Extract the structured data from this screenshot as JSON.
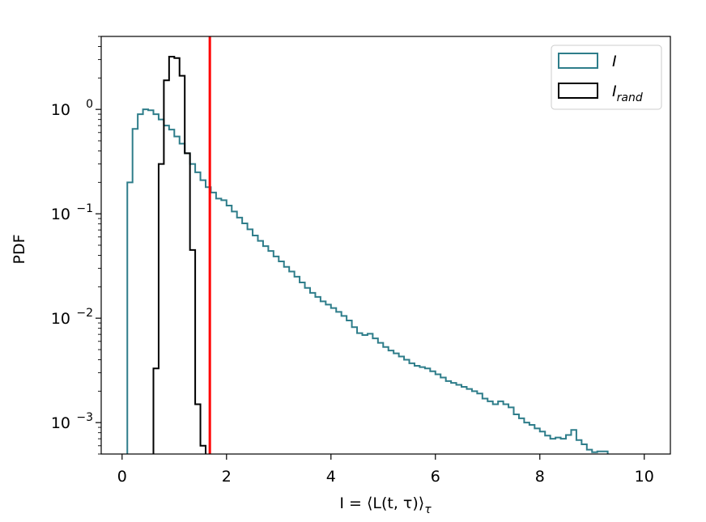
{
  "chart_data": {
    "type": "step-histogram",
    "xlabel": "I = ⟨L(t, τ)⟩τ",
    "xlabel_parts": {
      "main": "I = ⟨L(t, τ)⟩",
      "sub": "τ"
    },
    "ylabel": "PDF",
    "x_range": [
      -0.4,
      10.5
    ],
    "y_range": [
      0.0005,
      5.0
    ],
    "y_scale": "log",
    "x_ticks": [
      0,
      2,
      4,
      6,
      8,
      10
    ],
    "x_tick_labels": [
      "0",
      "2",
      "4",
      "6",
      "8",
      "10"
    ],
    "y_ticks": [
      0.001,
      0.01,
      0.1,
      1
    ],
    "y_tick_labels": [
      {
        "base": "10",
        "exp": "−3"
      },
      {
        "base": "10",
        "exp": "−2"
      },
      {
        "base": "10",
        "exp": "−1"
      },
      {
        "base": "10",
        "exp": "0"
      }
    ],
    "legend": {
      "position": "top-right",
      "entries": [
        {
          "text": "I",
          "sub": "",
          "color": "#2e7d8a"
        },
        {
          "text": "I",
          "sub": "rand",
          "color": "#000000"
        }
      ]
    },
    "vline": {
      "x": 1.68,
      "color": "#ff0000"
    },
    "series": [
      {
        "name": "I",
        "color": "#2e7d8a",
        "edges": [
          0.1,
          0.2,
          0.3,
          0.4,
          0.5,
          0.6,
          0.7,
          0.8,
          0.9,
          1.0,
          1.1,
          1.2,
          1.3,
          1.4,
          1.5,
          1.6,
          1.7,
          1.8,
          1.9,
          2.0,
          2.1,
          2.2,
          2.3,
          2.4,
          2.5,
          2.6,
          2.7,
          2.8,
          2.9,
          3.0,
          3.1,
          3.2,
          3.3,
          3.4,
          3.5,
          3.6,
          3.7,
          3.8,
          3.9,
          4.0,
          4.1,
          4.2,
          4.3,
          4.4,
          4.5,
          4.6,
          4.7,
          4.8,
          4.9,
          5.0,
          5.1,
          5.2,
          5.3,
          5.4,
          5.5,
          5.6,
          5.7,
          5.8,
          5.9,
          6.0,
          6.1,
          6.2,
          6.3,
          6.4,
          6.5,
          6.6,
          6.7,
          6.8,
          6.9,
          7.0,
          7.1,
          7.2,
          7.3,
          7.4,
          7.5,
          7.6,
          7.7,
          7.8,
          7.9,
          8.0,
          8.1,
          8.2,
          8.3,
          8.4,
          8.5,
          8.6,
          8.7,
          8.8,
          8.9,
          9.0,
          9.1,
          9.2,
          9.3
        ],
        "values": [
          0.2,
          0.65,
          0.9,
          1.0,
          0.98,
          0.9,
          0.8,
          0.7,
          0.64,
          0.55,
          0.47,
          0.38,
          0.3,
          0.25,
          0.21,
          0.18,
          0.16,
          0.14,
          0.135,
          0.12,
          0.105,
          0.092,
          0.081,
          0.071,
          0.062,
          0.055,
          0.049,
          0.044,
          0.039,
          0.035,
          0.031,
          0.028,
          0.025,
          0.022,
          0.0195,
          0.0175,
          0.016,
          0.0145,
          0.0135,
          0.0125,
          0.0115,
          0.0105,
          0.0095,
          0.0082,
          0.0072,
          0.0069,
          0.0071,
          0.0064,
          0.0058,
          0.0053,
          0.0049,
          0.0046,
          0.0043,
          0.004,
          0.0037,
          0.0035,
          0.0034,
          0.0033,
          0.0031,
          0.0029,
          0.0027,
          0.0025,
          0.0024,
          0.0023,
          0.0022,
          0.0021,
          0.002,
          0.0019,
          0.0017,
          0.0016,
          0.0015,
          0.0016,
          0.0015,
          0.0014,
          0.0012,
          0.0011,
          0.001,
          0.00095,
          0.00088,
          0.00082,
          0.00075,
          0.0007,
          0.00072,
          0.0007,
          0.00076,
          0.00085,
          0.00068,
          0.00062,
          0.00055,
          0.00052,
          0.00053,
          0.00053
        ]
      },
      {
        "name": "I_rand",
        "color": "#000000",
        "edges": [
          0.6,
          0.7,
          0.8,
          0.9,
          1.0,
          1.1,
          1.2,
          1.3,
          1.4,
          1.5,
          1.6
        ],
        "values": [
          0.0033,
          0.3,
          1.9,
          3.2,
          3.1,
          2.1,
          0.38,
          0.045,
          0.0015,
          0.0006
        ]
      }
    ]
  }
}
